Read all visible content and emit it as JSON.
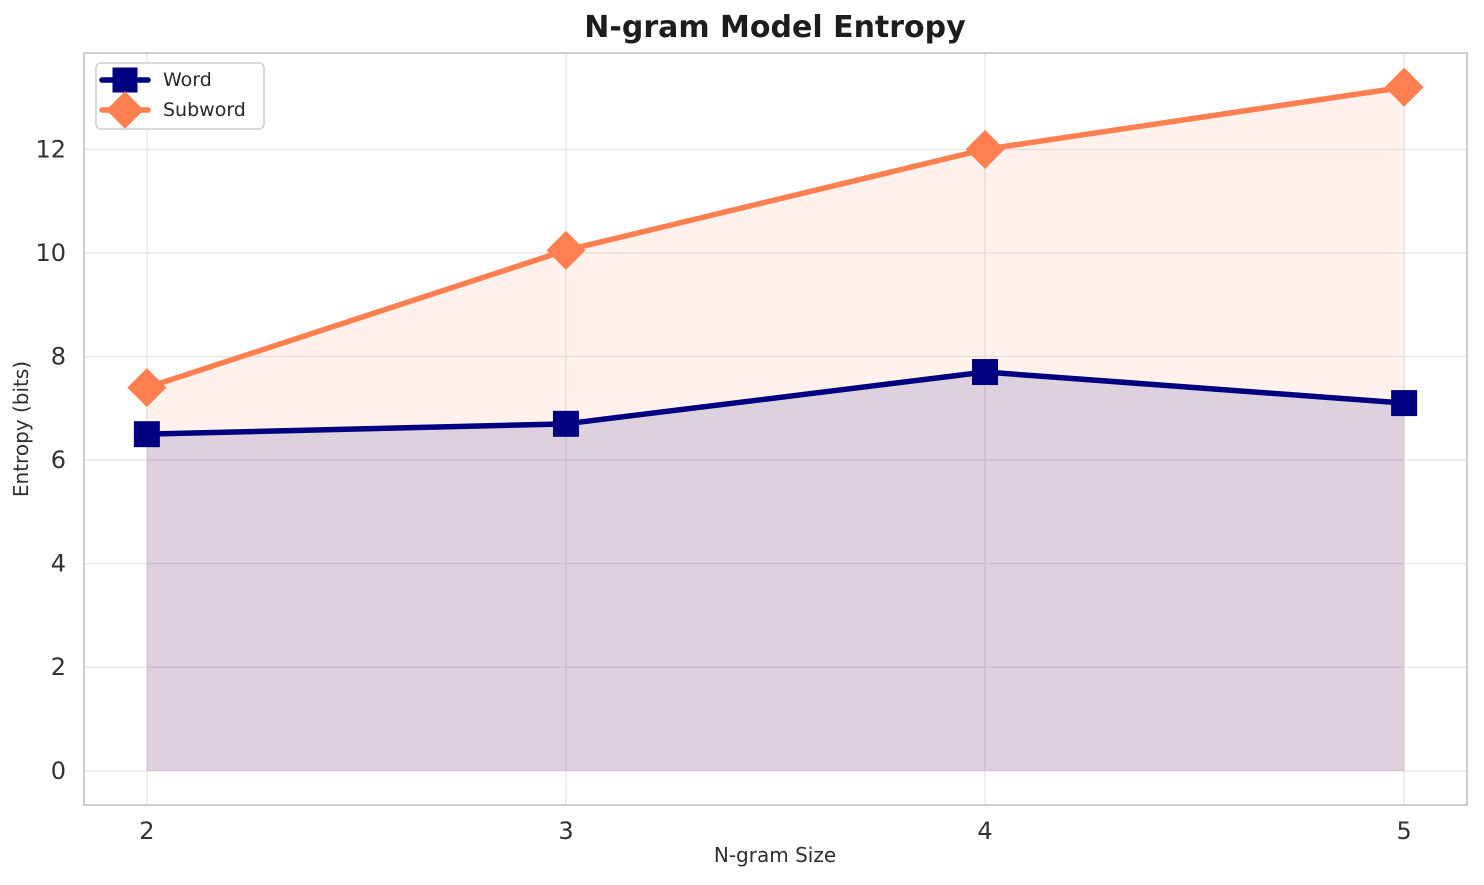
{
  "chart_data": {
    "type": "line",
    "title": "N-gram Model Entropy",
    "xlabel": "N-gram Size",
    "ylabel": "Entropy (bits)",
    "x": [
      2,
      3,
      4,
      5
    ],
    "series": [
      {
        "name": "Word",
        "values": [
          6.5,
          6.7,
          7.7,
          7.1
        ],
        "color": "#000080",
        "marker": "square",
        "fill_to_zero": true,
        "fill_opacity": 0.135
      },
      {
        "name": "Subword",
        "values": [
          7.4,
          10.05,
          12.0,
          13.2
        ],
        "color": "#ff7f50",
        "marker": "diamond",
        "fill_to_zero": true,
        "fill_opacity": 0.1
      }
    ],
    "xticks": [
      2,
      3,
      4,
      5
    ],
    "yticks": [
      0,
      2,
      4,
      6,
      8,
      10,
      12
    ],
    "xlim": [
      1.85,
      5.15
    ],
    "ylim": [
      -0.66,
      13.86
    ],
    "grid": true,
    "legend_position": "upper-left",
    "background_color": "#ffffff",
    "grid_color": "#e8e8e8",
    "frame_color": "#c8c8c8"
  }
}
